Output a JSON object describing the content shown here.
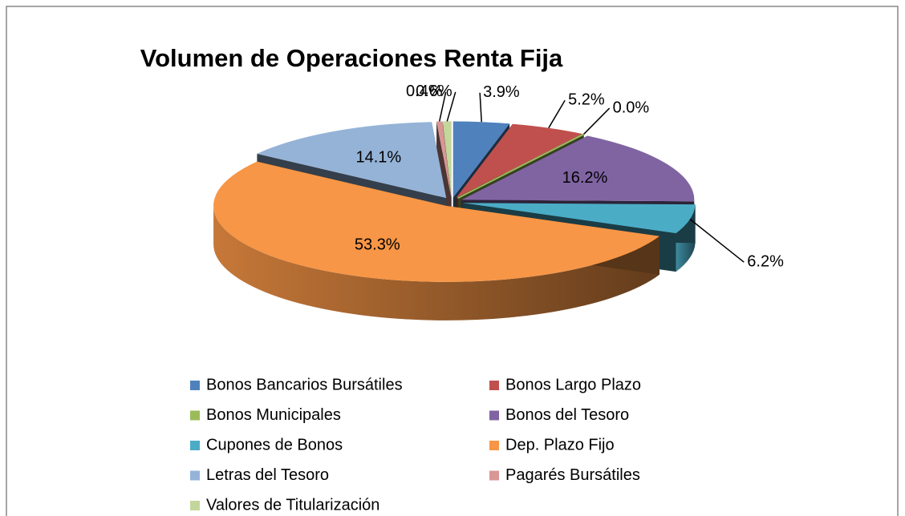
{
  "chart_data": {
    "type": "pie3d",
    "title": "Volumen de Operaciones Renta Fija",
    "categories": [
      "Bonos Bancarios Bursátiles",
      "Bonos Largo Plazo",
      "Bonos Municipales",
      "Bonos del Tesoro",
      "Cupones de Bonos",
      "Dep. Plazo Fijo",
      "Letras del Tesoro",
      "Pagarés Bursátiles",
      "Valores de Titularización"
    ],
    "values": [
      3.9,
      5.2,
      0.0,
      16.2,
      6.2,
      53.3,
      14.1,
      0.4,
      0.6
    ],
    "value_labels": [
      "3.9%",
      "5.2%",
      "0.0%",
      "16.2%",
      "6.2%",
      "53.3%",
      "14.1%",
      "0.4%",
      "0.6%"
    ],
    "colors": [
      "#4f81bd",
      "#c0504d",
      "#9bbb59",
      "#8064a2",
      "#4bacc6",
      "#f79646",
      "#95b3d7",
      "#d99694",
      "#c3d69b"
    ],
    "legend": "bottom"
  }
}
